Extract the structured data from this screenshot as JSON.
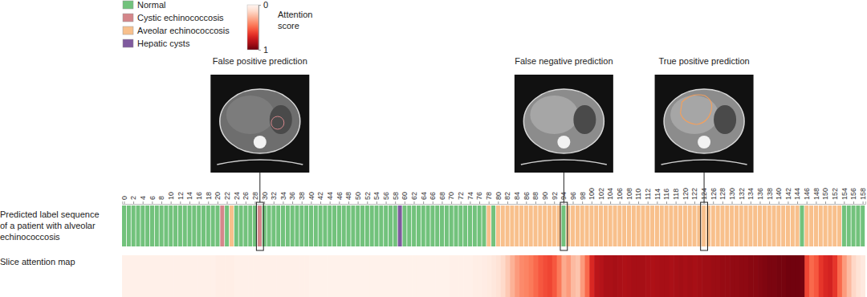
{
  "chart_data": {
    "type": "sequence_heatmap",
    "classes": [
      {
        "name": "Normal",
        "color": "#72c27c"
      },
      {
        "name": "Cystic echinococcosis",
        "color": "#d4868a"
      },
      {
        "name": "Aveolar echinococcosis",
        "color": "#f8c08c"
      },
      {
        "name": "Hepatic cysts",
        "color": "#7f5a9e"
      }
    ],
    "x": [
      0,
      1,
      2,
      3,
      4,
      5,
      6,
      7,
      8,
      9,
      10,
      11,
      12,
      13,
      14,
      15,
      16,
      17,
      18,
      19,
      20,
      21,
      22,
      23,
      24,
      25,
      26,
      27,
      28,
      29,
      30,
      31,
      32,
      33,
      34,
      35,
      36,
      37,
      38,
      39,
      40,
      41,
      42,
      43,
      44,
      45,
      46,
      47,
      48,
      49,
      50,
      51,
      52,
      53,
      54,
      55,
      56,
      57,
      58,
      59,
      60,
      61,
      62,
      63,
      64,
      65,
      66,
      67,
      68,
      69,
      70,
      71,
      72,
      73,
      74,
      75,
      76,
      77,
      78,
      79,
      80,
      81,
      82,
      83,
      84,
      85,
      86,
      87,
      88,
      89,
      90,
      91,
      92,
      93,
      94,
      95,
      96,
      97,
      98,
      99,
      100,
      101,
      102,
      103,
      104,
      105,
      106,
      107,
      108,
      109,
      110,
      111,
      112,
      113,
      114,
      115,
      116,
      117,
      118,
      119,
      120,
      121,
      122,
      123,
      124,
      125,
      126,
      127,
      128,
      129,
      130,
      131,
      132,
      133,
      134,
      135,
      136,
      137,
      138,
      139,
      140,
      141,
      142,
      143,
      144,
      145,
      146,
      147,
      148,
      149,
      150,
      151,
      152,
      153,
      154,
      155,
      156,
      157,
      158
    ],
    "xticks": [
      0,
      2,
      4,
      6,
      8,
      10,
      12,
      14,
      16,
      18,
      20,
      22,
      24,
      26,
      28,
      30,
      32,
      34,
      36,
      38,
      40,
      42,
      44,
      46,
      48,
      50,
      52,
      54,
      56,
      58,
      60,
      62,
      64,
      66,
      68,
      70,
      72,
      74,
      76,
      78,
      80,
      82,
      84,
      86,
      88,
      90,
      92,
      94,
      96,
      98,
      100,
      102,
      104,
      106,
      108,
      110,
      112,
      114,
      116,
      118,
      120,
      122,
      124,
      126,
      128,
      130,
      132,
      134,
      136,
      138,
      140,
      142,
      144,
      146,
      148,
      150,
      152,
      154,
      156,
      158
    ],
    "label_sequence": {
      "name_lines": [
        "Predicted label sequence",
        "of a patient with alveolar",
        "echinococcosis"
      ],
      "values": [
        0,
        0,
        0,
        0,
        0,
        0,
        0,
        0,
        0,
        0,
        0,
        0,
        0,
        0,
        0,
        0,
        0,
        0,
        0,
        0,
        0,
        1,
        0,
        2,
        0,
        0,
        0,
        0,
        0,
        1,
        0,
        0,
        0,
        0,
        0,
        0,
        0,
        0,
        0,
        0,
        0,
        0,
        0,
        0,
        0,
        0,
        0,
        0,
        0,
        0,
        0,
        0,
        0,
        0,
        0,
        0,
        0,
        0,
        0,
        3,
        0,
        0,
        0,
        0,
        0,
        0,
        0,
        0,
        0,
        0,
        0,
        0,
        0,
        0,
        0,
        0,
        0,
        0,
        2,
        0,
        2,
        2,
        2,
        2,
        2,
        2,
        2,
        2,
        2,
        2,
        2,
        2,
        2,
        2,
        0,
        2,
        2,
        2,
        2,
        2,
        2,
        2,
        2,
        2,
        2,
        2,
        2,
        2,
        2,
        2,
        2,
        2,
        2,
        2,
        2,
        2,
        2,
        2,
        2,
        2,
        2,
        2,
        2,
        2,
        2,
        2,
        2,
        2,
        2,
        2,
        2,
        2,
        2,
        2,
        2,
        2,
        2,
        2,
        2,
        2,
        2,
        2,
        2,
        2,
        2,
        0,
        2,
        2,
        2,
        2,
        2,
        2,
        2,
        2,
        0,
        0,
        0,
        0,
        0
      ]
    },
    "attention": {
      "name": "Slice attention map",
      "values": [
        0.03,
        0.03,
        0.03,
        0.03,
        0.03,
        0.03,
        0.03,
        0.03,
        0.03,
        0.03,
        0.03,
        0.03,
        0.03,
        0.03,
        0.03,
        0.03,
        0.03,
        0.03,
        0.03,
        0.03,
        0.04,
        0.04,
        0.04,
        0.04,
        0.03,
        0.03,
        0.03,
        0.03,
        0.03,
        0.03,
        0.03,
        0.03,
        0.03,
        0.03,
        0.03,
        0.03,
        0.03,
        0.03,
        0.03,
        0.03,
        0.02,
        0.02,
        0.02,
        0.02,
        0.02,
        0.02,
        0.02,
        0.02,
        0.02,
        0.02,
        0.02,
        0.02,
        0.02,
        0.02,
        0.02,
        0.02,
        0.02,
        0.02,
        0.02,
        0.02,
        0.02,
        0.02,
        0.02,
        0.02,
        0.02,
        0.02,
        0.02,
        0.02,
        0.02,
        0.02,
        0.03,
        0.03,
        0.03,
        0.03,
        0.03,
        0.04,
        0.04,
        0.05,
        0.06,
        0.08,
        0.1,
        0.14,
        0.2,
        0.28,
        0.35,
        0.4,
        0.42,
        0.45,
        0.5,
        0.55,
        0.58,
        0.6,
        0.55,
        0.45,
        0.3,
        0.35,
        0.25,
        0.22,
        0.35,
        0.5,
        0.7,
        0.8,
        0.82,
        0.85,
        0.85,
        0.86,
        0.85,
        0.84,
        0.85,
        0.86,
        0.86,
        0.86,
        0.85,
        0.84,
        0.85,
        0.86,
        0.86,
        0.85,
        0.86,
        0.87,
        0.86,
        0.87,
        0.86,
        0.87,
        0.88,
        0.88,
        0.89,
        0.89,
        0.9,
        0.9,
        0.91,
        0.91,
        0.92,
        0.92,
        0.93,
        0.93,
        0.94,
        0.95,
        0.96,
        0.96,
        0.97,
        0.97,
        0.98,
        0.98,
        0.98,
        0.97,
        0.6,
        0.5,
        0.55,
        0.65,
        0.7,
        0.72,
        0.65,
        0.5,
        0.35,
        0.25,
        0.15,
        0.1,
        0.07
      ]
    },
    "colorbar": {
      "title_lines": [
        "Attention",
        "score"
      ],
      "range": [
        0,
        1
      ],
      "ticks": [
        0,
        1
      ]
    },
    "annotations": [
      {
        "text": "False positive prediction",
        "slice": 29
      },
      {
        "text": "False negative prediction",
        "slice": 94
      },
      {
        "text": "True positive prediction",
        "slice": 124
      }
    ]
  }
}
